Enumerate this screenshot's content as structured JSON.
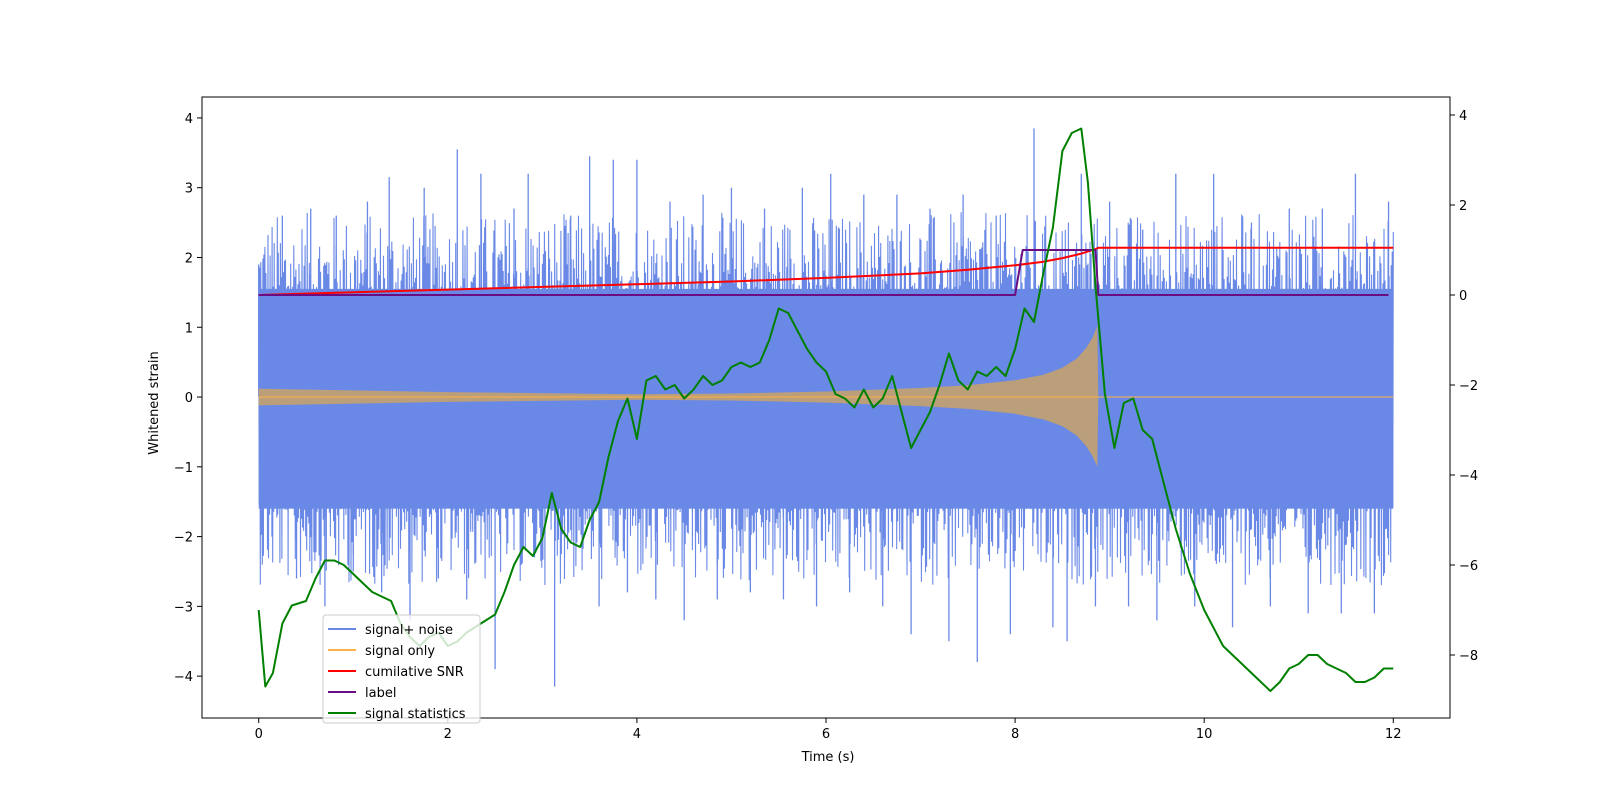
{
  "chart_data": {
    "type": "line",
    "xlabel": "Time (s)",
    "ylabel": "Whitened strain",
    "xlim": [
      -0.6,
      12.6
    ],
    "ylim": [
      -4.6,
      4.3
    ],
    "y2lim": [
      -9.4,
      4.4
    ],
    "x_ticks": [
      0,
      2,
      4,
      6,
      8,
      10,
      12
    ],
    "x_tick_labels": [
      "0",
      "2",
      "4",
      "6",
      "8",
      "10",
      "12"
    ],
    "y_ticks": [
      -4,
      -3,
      -2,
      -1,
      0,
      1,
      2,
      3,
      4
    ],
    "y_tick_labels": [
      "−4",
      "−3",
      "−2",
      "−1",
      "0",
      "1",
      "2",
      "3",
      "4"
    ],
    "y2_ticks": [
      -8,
      -6,
      -4,
      -2,
      0,
      2,
      4
    ],
    "y2_tick_labels": [
      "−8",
      "−6",
      "−4",
      "−2",
      "0",
      "2",
      "4"
    ],
    "legend_position": "lower-left",
    "series": [
      {
        "name": "signal+ noise",
        "axis": "left",
        "color": "#6A89E6",
        "description_range": [
          -4.2,
          3.9
        ],
        "x_range": [
          0,
          12
        ],
        "spikes": [
          {
            "x": 0.0,
            "y": 1.9
          },
          {
            "x": 0.14,
            "y": -2.0
          },
          {
            "x": 0.25,
            "y": 2.6
          },
          {
            "x": 0.4,
            "y": -2.6
          },
          {
            "x": 0.55,
            "y": 2.7
          },
          {
            "x": 0.7,
            "y": -3.0
          },
          {
            "x": 0.82,
            "y": 2.6
          },
          {
            "x": 1.0,
            "y": -2.5
          },
          {
            "x": 1.15,
            "y": 2.8
          },
          {
            "x": 1.3,
            "y": -2.8
          },
          {
            "x": 1.38,
            "y": 3.15
          },
          {
            "x": 1.6,
            "y": -3.2
          },
          {
            "x": 1.75,
            "y": 3.0
          },
          {
            "x": 1.9,
            "y": -2.6
          },
          {
            "x": 2.1,
            "y": 3.55
          },
          {
            "x": 2.2,
            "y": -2.9
          },
          {
            "x": 2.35,
            "y": 3.2
          },
          {
            "x": 2.5,
            "y": -3.9
          },
          {
            "x": 2.7,
            "y": 2.7
          },
          {
            "x": 2.85,
            "y": 3.2
          },
          {
            "x": 3.13,
            "y": -4.15
          },
          {
            "x": 3.3,
            "y": 2.6
          },
          {
            "x": 3.5,
            "y": 3.45
          },
          {
            "x": 3.6,
            "y": -3.0
          },
          {
            "x": 3.75,
            "y": 3.4
          },
          {
            "x": 3.9,
            "y": -2.8
          },
          {
            "x": 4.0,
            "y": 3.4
          },
          {
            "x": 4.2,
            "y": -2.9
          },
          {
            "x": 4.35,
            "y": 2.8
          },
          {
            "x": 4.5,
            "y": -3.2
          },
          {
            "x": 4.7,
            "y": 2.9
          },
          {
            "x": 4.85,
            "y": -2.9
          },
          {
            "x": 5.0,
            "y": 3.0
          },
          {
            "x": 5.2,
            "y": -2.8
          },
          {
            "x": 5.35,
            "y": 2.7
          },
          {
            "x": 5.55,
            "y": -2.9
          },
          {
            "x": 5.75,
            "y": 3.0
          },
          {
            "x": 5.9,
            "y": -3.0
          },
          {
            "x": 6.05,
            "y": 3.2
          },
          {
            "x": 6.25,
            "y": -2.8
          },
          {
            "x": 6.4,
            "y": 2.9
          },
          {
            "x": 6.6,
            "y": -3.0
          },
          {
            "x": 6.75,
            "y": 2.9
          },
          {
            "x": 6.9,
            "y": -3.4
          },
          {
            "x": 7.1,
            "y": 2.7
          },
          {
            "x": 7.3,
            "y": -3.5
          },
          {
            "x": 7.45,
            "y": 2.9
          },
          {
            "x": 7.6,
            "y": -3.8
          },
          {
            "x": 7.8,
            "y": 2.6
          },
          {
            "x": 7.95,
            "y": -3.4
          },
          {
            "x": 8.2,
            "y": 3.85
          },
          {
            "x": 8.4,
            "y": -3.3
          },
          {
            "x": 8.55,
            "y": -3.5
          },
          {
            "x": 8.7,
            "y": 3.2
          },
          {
            "x": 8.85,
            "y": -3.0
          },
          {
            "x": 9.0,
            "y": 2.8
          },
          {
            "x": 9.2,
            "y": -3.0
          },
          {
            "x": 9.35,
            "y": 2.4
          },
          {
            "x": 9.5,
            "y": -3.2
          },
          {
            "x": 9.7,
            "y": 3.2
          },
          {
            "x": 9.9,
            "y": -3.0
          },
          {
            "x": 10.1,
            "y": 3.2
          },
          {
            "x": 10.3,
            "y": -3.3
          },
          {
            "x": 10.5,
            "y": 2.5
          },
          {
            "x": 10.7,
            "y": -3.0
          },
          {
            "x": 10.9,
            "y": 2.7
          },
          {
            "x": 11.1,
            "y": -3.1
          },
          {
            "x": 11.25,
            "y": 2.7
          },
          {
            "x": 11.45,
            "y": -3.1
          },
          {
            "x": 11.6,
            "y": 3.2
          },
          {
            "x": 11.8,
            "y": -3.1
          },
          {
            "x": 11.95,
            "y": 2.8
          }
        ]
      },
      {
        "name": "signal only",
        "axis": "left",
        "color": "#FFB347",
        "envelope": [
          {
            "x": 0.0,
            "y": 0.12
          },
          {
            "x": 2.0,
            "y": 0.07
          },
          {
            "x": 4.0,
            "y": 0.04
          },
          {
            "x": 5.0,
            "y": 0.05
          },
          {
            "x": 6.0,
            "y": 0.08
          },
          {
            "x": 7.0,
            "y": 0.13
          },
          {
            "x": 7.5,
            "y": 0.17
          },
          {
            "x": 8.0,
            "y": 0.24
          },
          {
            "x": 8.3,
            "y": 0.32
          },
          {
            "x": 8.5,
            "y": 0.42
          },
          {
            "x": 8.65,
            "y": 0.55
          },
          {
            "x": 8.75,
            "y": 0.7
          },
          {
            "x": 8.82,
            "y": 0.85
          },
          {
            "x": 8.87,
            "y": 1.02
          },
          {
            "x": 8.88,
            "y": 0.0
          },
          {
            "x": 12.0,
            "y": 0.0
          }
        ],
        "lower_min": -1.0
      },
      {
        "name": "cumilative SNR",
        "axis": "right",
        "color": "#FF0000",
        "x": [
          0,
          1,
          2,
          3,
          4,
          5,
          6,
          7,
          7.5,
          8,
          8.3,
          8.5,
          8.7,
          8.85,
          8.88,
          12
        ],
        "y": [
          0,
          0.06,
          0.12,
          0.18,
          0.24,
          0.3,
          0.38,
          0.48,
          0.56,
          0.66,
          0.74,
          0.82,
          0.92,
          1.02,
          1.05,
          1.05
        ]
      },
      {
        "name": "label",
        "axis": "right",
        "color": "#6A0D83",
        "x": [
          0,
          8.0,
          8.08,
          8.85,
          8.88,
          11.95
        ],
        "y": [
          0,
          0,
          1.0,
          1.0,
          0,
          0
        ]
      },
      {
        "name": "signal statistics",
        "axis": "right",
        "color": "#008000",
        "x": [
          0.0,
          0.07,
          0.15,
          0.25,
          0.35,
          0.5,
          0.6,
          0.7,
          0.8,
          0.9,
          1.0,
          1.1,
          1.2,
          1.3,
          1.4,
          1.5,
          1.6,
          1.7,
          1.8,
          1.9,
          2.0,
          2.1,
          2.2,
          2.35,
          2.5,
          2.6,
          2.7,
          2.8,
          2.9,
          3.0,
          3.1,
          3.2,
          3.3,
          3.4,
          3.5,
          3.6,
          3.7,
          3.8,
          3.9,
          4.0,
          4.1,
          4.2,
          4.3,
          4.4,
          4.5,
          4.6,
          4.7,
          4.8,
          4.9,
          5.0,
          5.1,
          5.2,
          5.3,
          5.4,
          5.5,
          5.6,
          5.7,
          5.8,
          5.9,
          6.0,
          6.1,
          6.2,
          6.3,
          6.4,
          6.5,
          6.6,
          6.7,
          6.8,
          6.9,
          7.0,
          7.1,
          7.2,
          7.3,
          7.4,
          7.5,
          7.6,
          7.7,
          7.8,
          7.9,
          8.0,
          8.1,
          8.2,
          8.3,
          8.4,
          8.5,
          8.6,
          8.7,
          8.77,
          8.85,
          8.95,
          9.05,
          9.15,
          9.25,
          9.35,
          9.45,
          9.55,
          9.7,
          9.85,
          10.0,
          10.2,
          10.4,
          10.6,
          10.7,
          10.8,
          10.9,
          11.0,
          11.1,
          11.2,
          11.3,
          11.4,
          11.5,
          11.6,
          11.7,
          11.8,
          11.9,
          12.0
        ],
        "y": [
          -7.0,
          -8.7,
          -8.4,
          -7.3,
          -6.9,
          -6.8,
          -6.3,
          -5.9,
          -5.9,
          -6.0,
          -6.2,
          -6.4,
          -6.6,
          -6.7,
          -6.8,
          -7.3,
          -7.6,
          -7.8,
          -7.6,
          -7.5,
          -7.8,
          -7.7,
          -7.5,
          -7.3,
          -7.1,
          -6.6,
          -6.0,
          -5.6,
          -5.8,
          -5.4,
          -4.4,
          -5.2,
          -5.5,
          -5.6,
          -5.0,
          -4.6,
          -3.6,
          -2.8,
          -2.3,
          -3.2,
          -1.9,
          -1.8,
          -2.1,
          -2.0,
          -2.3,
          -2.1,
          -1.8,
          -2.0,
          -1.9,
          -1.6,
          -1.5,
          -1.6,
          -1.5,
          -1.0,
          -0.3,
          -0.4,
          -0.8,
          -1.2,
          -1.5,
          -1.7,
          -2.2,
          -2.3,
          -2.5,
          -2.1,
          -2.5,
          -2.3,
          -1.8,
          -2.6,
          -3.4,
          -3.0,
          -2.6,
          -2.0,
          -1.3,
          -1.9,
          -2.1,
          -1.7,
          -1.8,
          -1.6,
          -1.8,
          -1.2,
          -0.3,
          -0.6,
          0.5,
          1.5,
          3.2,
          3.6,
          3.7,
          2.5,
          0.2,
          -2.2,
          -3.4,
          -2.4,
          -2.3,
          -3.0,
          -3.2,
          -4.0,
          -5.2,
          -6.2,
          -7.0,
          -7.8,
          -8.2,
          -8.6,
          -8.8,
          -8.6,
          -8.3,
          -8.2,
          -8.0,
          -8.0,
          -8.2,
          -8.3,
          -8.4,
          -8.6,
          -8.6,
          -8.5,
          -8.3,
          -8.3
        ]
      }
    ],
    "legend": [
      "signal+ noise",
      "signal only",
      "cumilative SNR",
      "label",
      "signal statistics"
    ]
  }
}
